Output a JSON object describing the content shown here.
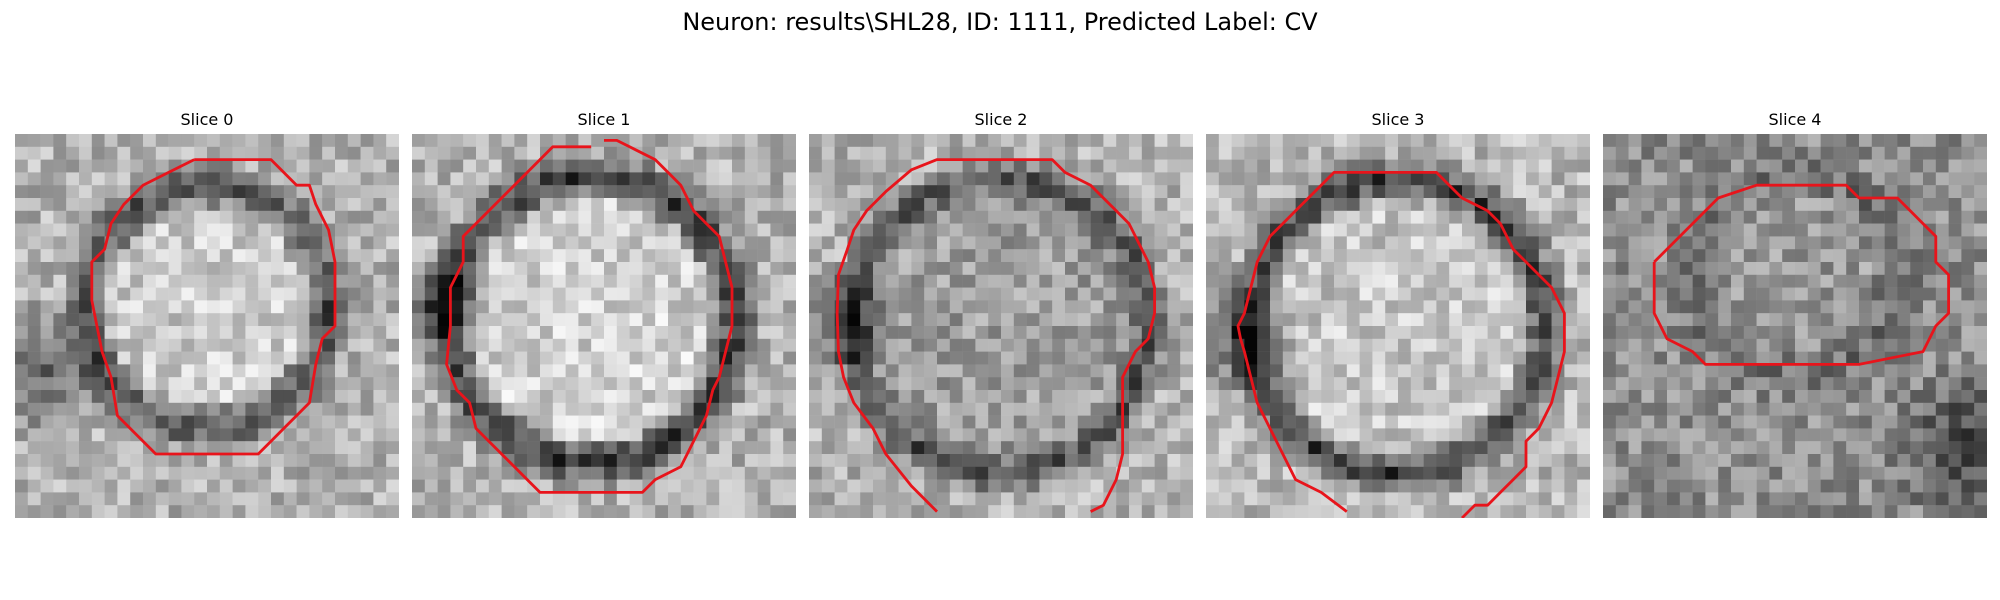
{
  "title": "Neuron: results\\SHL28, ID: 1111, Predicted Label: CV",
  "colors": {
    "contour": "#e8141b",
    "background": "#ffffff",
    "text": "#000000"
  },
  "image": {
    "colormap": "grayscale",
    "grid_size": 30
  },
  "slices": [
    {
      "label": "Slice 0"
    },
    {
      "label": "Slice 1"
    },
    {
      "label": "Slice 2"
    },
    {
      "label": "Slice 3"
    },
    {
      "label": "Slice 4"
    }
  ]
}
